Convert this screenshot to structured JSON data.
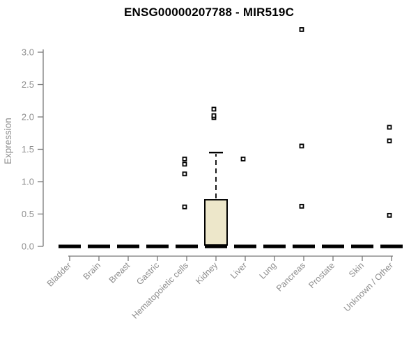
{
  "title": "ENSG00000207788 - MIR519C",
  "chart_data": {
    "type": "boxplot",
    "title": "ENSG00000207788 - MIR519C",
    "ylabel": "Expression",
    "xlabel": "",
    "ylim": [
      0,
      3.35
    ],
    "yticks": [
      0.0,
      0.5,
      1.0,
      1.5,
      2.0,
      2.5,
      3.0
    ],
    "legend": "none",
    "grid": false,
    "categories": [
      "Bladder",
      "Brain",
      "Breast",
      "Gastric",
      "Hematopoietic cells",
      "Kidney",
      "Liver",
      "Lung",
      "Pancreas",
      "Prostate",
      "Skin",
      "Unknown / Other"
    ],
    "series": [
      {
        "category": "Bladder",
        "q1": 0,
        "median": 0,
        "q3": 0,
        "whisker_low": 0,
        "whisker_high": 0,
        "outliers": []
      },
      {
        "category": "Brain",
        "q1": 0,
        "median": 0,
        "q3": 0,
        "whisker_low": 0,
        "whisker_high": 0,
        "outliers": []
      },
      {
        "category": "Breast",
        "q1": 0,
        "median": 0,
        "q3": 0,
        "whisker_low": 0,
        "whisker_high": 0,
        "outliers": []
      },
      {
        "category": "Gastric",
        "q1": 0,
        "median": 0,
        "q3": 0,
        "whisker_low": 0,
        "whisker_high": 0,
        "outliers": []
      },
      {
        "category": "Hematopoietic cells",
        "q1": 0,
        "median": 0,
        "q3": 0,
        "whisker_low": 0,
        "whisker_high": 0,
        "outliers": [
          0.61,
          1.12,
          1.27,
          1.35
        ]
      },
      {
        "category": "Kidney",
        "q1": 0,
        "median": 0,
        "q3": 0.72,
        "whisker_low": 0,
        "whisker_high": 1.45,
        "outliers": [
          1.99,
          2.02,
          2.12
        ]
      },
      {
        "category": "Liver",
        "q1": 0,
        "median": 0,
        "q3": 0,
        "whisker_low": 0,
        "whisker_high": 0,
        "outliers": [
          1.35
        ]
      },
      {
        "category": "Lung",
        "q1": 0,
        "median": 0,
        "q3": 0,
        "whisker_low": 0,
        "whisker_high": 0,
        "outliers": []
      },
      {
        "category": "Pancreas",
        "q1": 0,
        "median": 0,
        "q3": 0,
        "whisker_low": 0,
        "whisker_high": 0,
        "outliers": [
          0.62,
          1.55,
          3.35
        ]
      },
      {
        "category": "Prostate",
        "q1": 0,
        "median": 0,
        "q3": 0,
        "whisker_low": 0,
        "whisker_high": 0,
        "outliers": []
      },
      {
        "category": "Skin",
        "q1": 0,
        "median": 0,
        "q3": 0,
        "whisker_low": 0,
        "whisker_high": 0,
        "outliers": []
      },
      {
        "category": "Unknown / Other",
        "q1": 0,
        "median": 0,
        "q3": 0,
        "whisker_low": 0,
        "whisker_high": 0,
        "outliers": [
          0.48,
          1.63,
          1.84
        ]
      }
    ],
    "colors": {
      "box_fill": "#EDE7CA",
      "box_stroke": "#000000",
      "median": "#000000",
      "whisker": "#000000",
      "outlier_stroke": "#000000",
      "outlier_fill": "#ffffff",
      "axis": "#787878",
      "tick_label": "#8e8e8e",
      "title": "#000000"
    }
  }
}
